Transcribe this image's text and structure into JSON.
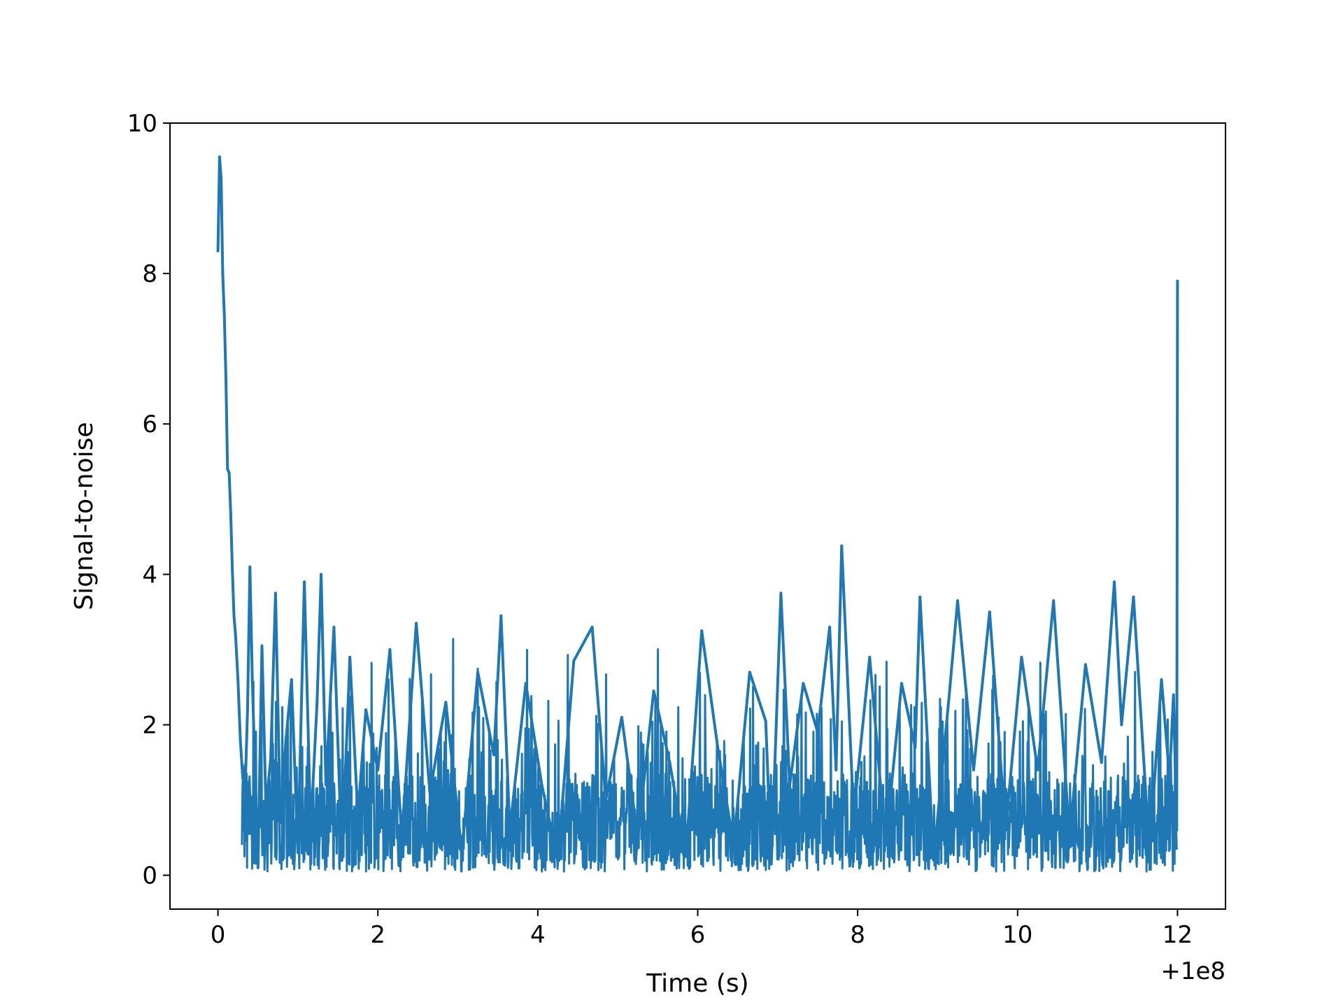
{
  "chart_data": {
    "type": "line",
    "xlabel": "Time (s)",
    "ylabel": "Signal-to-noise",
    "x_offset_label": "+1e8",
    "xlim": [
      -0.6,
      12.6
    ],
    "ylim": [
      -0.45,
      10
    ],
    "xticks": [
      0,
      2,
      4,
      6,
      8,
      10,
      12
    ],
    "yticks": [
      0,
      2,
      4,
      6,
      8,
      10
    ],
    "grid": false,
    "legend": "none",
    "series": [
      {
        "color": "#1f77b4",
        "x": [
          0.0,
          0.02,
          0.04,
          0.06,
          0.08,
          0.1,
          0.12,
          0.14,
          0.16,
          0.18,
          0.2,
          0.22,
          0.25,
          0.28,
          0.31,
          0.34,
          0.37,
          0.4,
          0.43,
          0.46,
          0.5,
          0.55,
          0.6,
          0.66,
          0.72,
          0.78,
          0.85,
          0.92,
          1.0,
          1.08,
          1.16,
          1.24,
          1.29,
          1.35,
          1.45,
          1.55,
          1.65,
          1.75,
          1.85,
          2.0,
          2.15,
          2.3,
          2.48,
          2.65,
          2.85,
          3.05,
          3.25,
          3.45,
          3.54,
          3.65,
          3.85,
          4.05,
          4.25,
          4.45,
          4.68,
          4.85,
          5.05,
          5.25,
          5.45,
          5.65,
          5.85,
          6.05,
          6.25,
          6.45,
          6.65,
          6.85,
          6.92,
          7.04,
          7.15,
          7.32,
          7.5,
          7.65,
          7.73,
          7.8,
          7.95,
          8.15,
          8.35,
          8.55,
          8.72,
          8.78,
          8.95,
          9.15,
          9.25,
          9.45,
          9.65,
          9.85,
          10.05,
          10.25,
          10.45,
          10.65,
          10.85,
          11.05,
          11.21,
          11.3,
          11.45,
          11.65,
          11.8,
          11.9,
          11.95,
          11.99,
          12.0
        ],
        "y": [
          8.3,
          9.55,
          9.25,
          8.0,
          7.45,
          6.6,
          5.4,
          5.35,
          4.8,
          4.05,
          3.45,
          3.2,
          2.6,
          1.8,
          1.3,
          1.15,
          2.2,
          4.1,
          2.6,
          1.5,
          0.1,
          3.05,
          0.9,
          1.55,
          3.75,
          0.7,
          1.8,
          2.6,
          0.3,
          3.9,
          0.6,
          2.3,
          4.0,
          1.2,
          3.3,
          0.2,
          2.9,
          0.8,
          2.2,
          1.4,
          3.0,
          0.5,
          3.35,
          1.1,
          2.3,
          0.3,
          2.7,
          1.6,
          3.45,
          0.6,
          2.55,
          1.2,
          0.2,
          2.85,
          3.3,
          1.0,
          2.1,
          0.5,
          2.45,
          1.5,
          0.25,
          3.25,
          1.7,
          0.4,
          2.7,
          2.05,
          0.15,
          3.75,
          1.2,
          2.55,
          1.9,
          3.3,
          1.4,
          4.38,
          0.8,
          2.9,
          0.4,
          2.55,
          1.7,
          3.7,
          0.2,
          2.45,
          3.65,
          1.4,
          3.5,
          0.6,
          2.9,
          1.4,
          3.65,
          0.5,
          2.8,
          1.5,
          3.9,
          2.0,
          3.7,
          0.3,
          2.6,
          1.3,
          2.4,
          0.6,
          7.9
        ]
      }
    ]
  }
}
